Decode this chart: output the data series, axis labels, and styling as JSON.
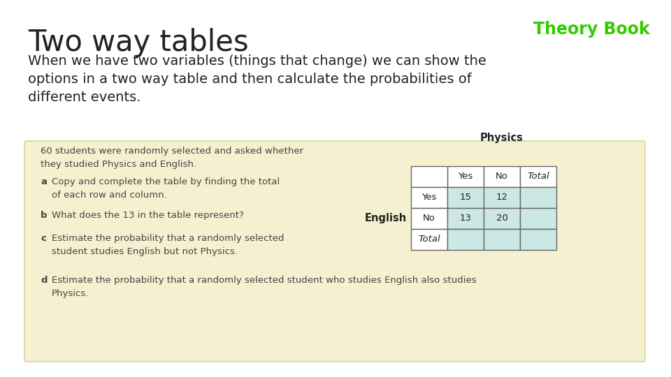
{
  "title": "Two way tables",
  "theory_book_label": "Theory Book",
  "theory_book_color": "#33cc00",
  "subtitle_line1": "When we have two variables (things that change) we can show the",
  "subtitle_line2": "options in a two way table and then calculate the probabilities of",
  "subtitle_line3": "different events.",
  "box_bg_color": "#f5f0d0",
  "box_border_color": "#d8d4a0",
  "box_intro_line1": "60 students were randomly selected and asked whether",
  "box_intro_line2": "they studied Physics and English.",
  "questions": [
    [
      "a",
      "Copy and complete the table by finding the total\nof each row and column."
    ],
    [
      "b",
      "What does the 13 in the table represent?"
    ],
    [
      "c",
      "Estimate the probability that a randomly selected\nstudent studies English but not Physics."
    ],
    [
      "d",
      "Estimate the probability that a randomly selected student who studies English also studies\nPhysics."
    ]
  ],
  "table_header_col": "Physics",
  "table_header_row": "English",
  "col_labels": [
    "Yes",
    "No",
    "Total"
  ],
  "row_labels": [
    "Yes",
    "No",
    "Total"
  ],
  "table_data": [
    [
      "15",
      "12",
      ""
    ],
    [
      "13",
      "20",
      ""
    ],
    [
      "",
      "",
      ""
    ]
  ],
  "table_cell_bg": "#cce8e4",
  "table_header_bg": "#ffffff",
  "bg_color": "#ffffff",
  "text_color": "#222222",
  "box_text_color": "#444444"
}
